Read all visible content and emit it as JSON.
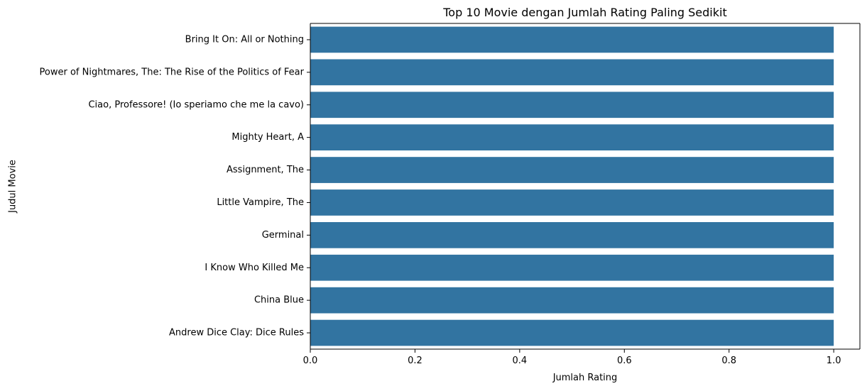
{
  "chart_data": {
    "type": "bar",
    "orientation": "horizontal",
    "title": "Top 10 Movie dengan Jumlah Rating Paling Sedikit",
    "xlabel": "Jumlah Rating",
    "ylabel": "Judul Movie",
    "categories": [
      "Bring It On: All or Nothing",
      "Power of Nightmares, The: The Rise of the Politics of Fear",
      "Ciao, Professore! (Io speriamo che me la cavo)",
      "Mighty Heart, A",
      "Assignment, The",
      "Little Vampire, The",
      "Germinal",
      "I Know Who Killed Me",
      "China Blue",
      "Andrew Dice Clay: Dice Rules"
    ],
    "values": [
      1,
      1,
      1,
      1,
      1,
      1,
      1,
      1,
      1,
      1
    ],
    "xlim": [
      0,
      1.05
    ],
    "xticks": [
      0.0,
      0.2,
      0.4,
      0.6,
      0.8,
      1.0
    ],
    "xtick_labels": [
      "0.0",
      "0.2",
      "0.4",
      "0.6",
      "0.8",
      "1.0"
    ],
    "grid": false,
    "bar_color": "#3274a1"
  }
}
